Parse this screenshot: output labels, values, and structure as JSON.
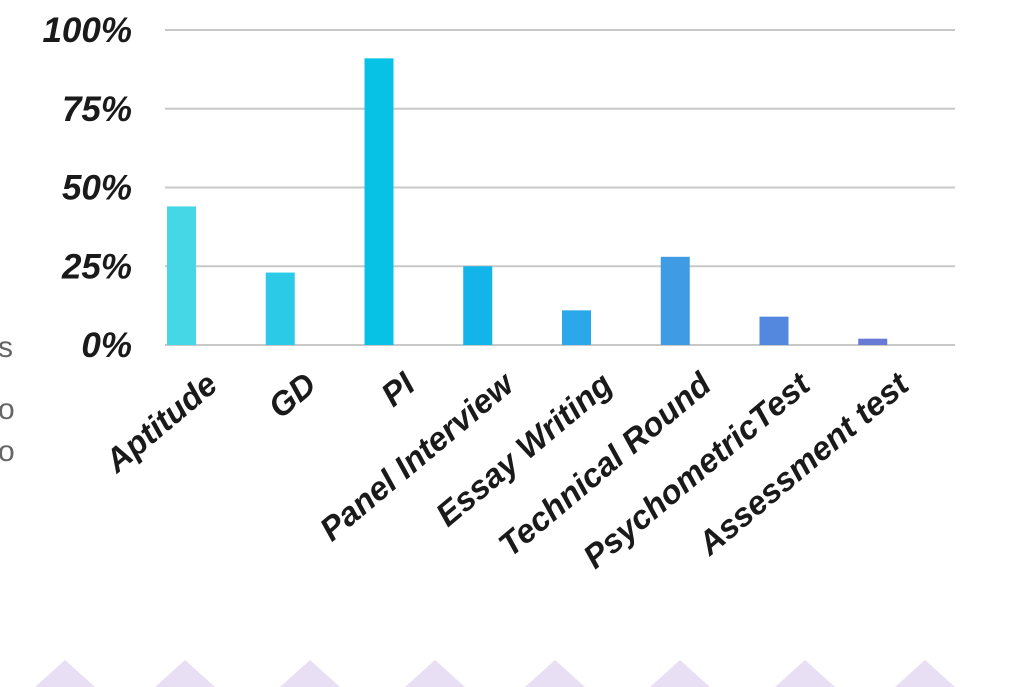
{
  "side_fragments": [
    "s",
    "o",
    "o"
  ],
  "chart_data": {
    "type": "bar",
    "title": "",
    "xlabel": "",
    "ylabel": "",
    "ylim": [
      0,
      100
    ],
    "yticks": [
      0,
      25,
      50,
      75,
      100
    ],
    "ytick_labels": [
      "0%",
      "25%",
      "50%",
      "75%",
      "100%"
    ],
    "grid": true,
    "legend": "none",
    "categories": [
      "Aptitude",
      "GD",
      "PI",
      "Panel Interview",
      "Essay Writing",
      "Technical Round",
      "PsychometricTest",
      "Assessment test"
    ],
    "values": [
      44,
      23,
      91,
      25,
      11,
      28,
      9,
      2
    ],
    "colors": [
      "#45D7E6",
      "#2BCBE8",
      "#08C2E6",
      "#12B4EA",
      "#2AA8EA",
      "#3E9BE4",
      "#5388DE",
      "#6679D5"
    ]
  },
  "background": {
    "decor_color": "#E9DFF5",
    "grid_color": "#C8C8C8",
    "baseline_color": "#C8C8C8"
  }
}
